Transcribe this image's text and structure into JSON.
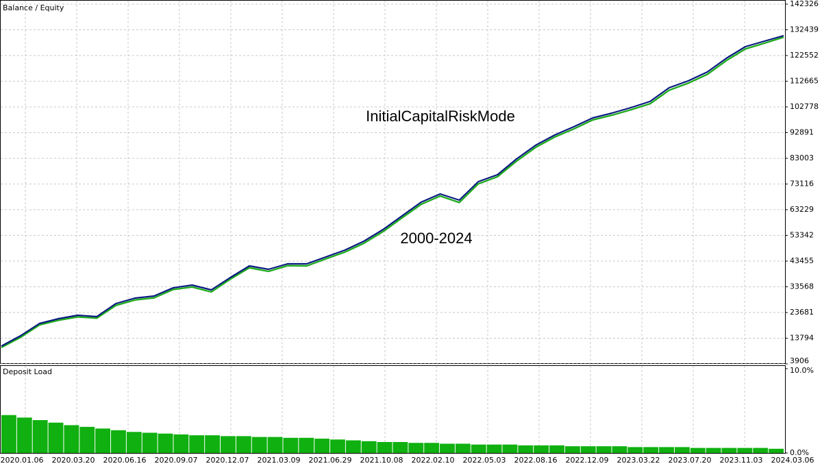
{
  "chart_data": [
    {
      "type": "line",
      "legend_separator": " / ",
      "series": [
        {
          "name": "Balance",
          "color": "#0a1a80",
          "values": [
            10761,
            14716,
            19462,
            21308,
            22626,
            22099,
            27108,
            29217,
            30008,
            33172,
            34227,
            32381,
            37127,
            41609,
            40291,
            42400,
            42400,
            45037,
            47674,
            51101,
            55583,
            60857,
            66130,
            69294,
            66921,
            74040,
            76676,
            82740,
            88014,
            91968,
            95132,
            98560,
            100406,
            102515,
            104888,
            110161,
            112798,
            116225,
            121498,
            125981,
            128090,
            130199
          ]
        },
        {
          "name": "Equity",
          "color": "#1faa1f",
          "values": [
            10200,
            14100,
            18900,
            20700,
            22000,
            21500,
            26400,
            28500,
            29300,
            32500,
            33500,
            31600,
            36500,
            40900,
            39500,
            41700,
            41600,
            44300,
            46900,
            50300,
            54800,
            60100,
            65300,
            68500,
            66000,
            73200,
            75900,
            81900,
            87200,
            91200,
            94300,
            97800,
            99600,
            101700,
            104000,
            109200,
            111900,
            115300,
            120600,
            125100,
            127300,
            129600
          ]
        }
      ],
      "ylim": [
        3906,
        142326
      ],
      "yticks": [
        3906,
        13794,
        23681,
        33568,
        43455,
        53342,
        63229,
        73116,
        83003,
        92891,
        102778,
        112665,
        122552,
        132439,
        142326
      ],
      "grid": true,
      "annotations": [
        {
          "text": "InitialCapitalRiskMode",
          "color": "#e8322e"
        },
        {
          "text": "2000-2024",
          "color": "#e8322e"
        }
      ]
    },
    {
      "type": "bar",
      "title": "Deposit Load",
      "color": "#10b010",
      "values": [
        4.5,
        4.2,
        3.9,
        3.6,
        3.3,
        3.1,
        2.9,
        2.7,
        2.5,
        2.4,
        2.3,
        2.2,
        2.1,
        2.1,
        2.0,
        2.0,
        1.9,
        1.9,
        1.8,
        1.8,
        1.7,
        1.6,
        1.5,
        1.4,
        1.3,
        1.3,
        1.2,
        1.2,
        1.1,
        1.1,
        1.0,
        1.0,
        1.0,
        0.9,
        0.9,
        0.9,
        0.8,
        0.8,
        0.8,
        0.8,
        0.7,
        0.7,
        0.7,
        0.7,
        0.6,
        0.6,
        0.6,
        0.6,
        0.6,
        0.5
      ],
      "ylim": [
        0,
        10
      ],
      "yticks": [
        {
          "value": 0,
          "label": "0.0%"
        },
        {
          "value": 10,
          "label": "10.0%"
        }
      ],
      "x_labels": [
        "2020.01.06",
        "2020.03.20",
        "2020.06.16",
        "2020.09.07",
        "2020.12.07",
        "2021.03.09",
        "2021.06.29",
        "2021.10.08",
        "2022.02.10",
        "2022.05.03",
        "2022.08.16",
        "2022.12.09",
        "2023.03.22",
        "2023.07.20",
        "2023.11.03",
        "2024.03.06"
      ]
    }
  ]
}
